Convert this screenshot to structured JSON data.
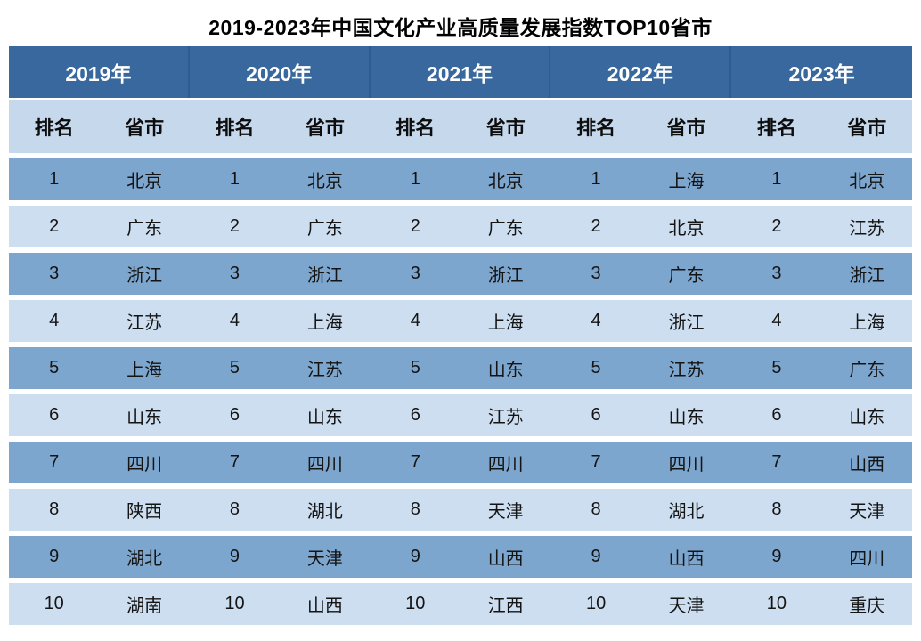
{
  "title": "2019-2023年中国文化产业高质量发展指数TOP10省市",
  "colors": {
    "year_header_bg": "#38689D",
    "year_header_divider": "#2D5C90",
    "year_header_text": "#ffffff",
    "sub_header_bg": "#C6D8EB",
    "row_odd_bg": "#7DA6CE",
    "row_even_bg": "#CDDEF0",
    "data_text": "#141414",
    "page_bg": "#ffffff"
  },
  "table": {
    "year_headers": [
      "2019年",
      "2020年",
      "2021年",
      "2022年",
      "2023年"
    ],
    "sub_headers": [
      "排名",
      "省市",
      "排名",
      "省市",
      "排名",
      "省市",
      "排名",
      "省市",
      "排名",
      "省市"
    ],
    "rows": [
      {
        "rank": "1",
        "provinces": [
          "北京",
          "北京",
          "北京",
          "上海",
          "北京"
        ]
      },
      {
        "rank": "2",
        "provinces": [
          "广东",
          "广东",
          "广东",
          "北京",
          "江苏"
        ]
      },
      {
        "rank": "3",
        "provinces": [
          "浙江",
          "浙江",
          "浙江",
          "广东",
          "浙江"
        ]
      },
      {
        "rank": "4",
        "provinces": [
          "江苏",
          "上海",
          "上海",
          "浙江",
          "上海"
        ]
      },
      {
        "rank": "5",
        "provinces": [
          "上海",
          "江苏",
          "山东",
          "江苏",
          "广东"
        ]
      },
      {
        "rank": "6",
        "provinces": [
          "山东",
          "山东",
          "江苏",
          "山东",
          "山东"
        ]
      },
      {
        "rank": "7",
        "provinces": [
          "四川",
          "四川",
          "四川",
          "四川",
          "山西"
        ]
      },
      {
        "rank": "8",
        "provinces": [
          "陕西",
          "湖北",
          "天津",
          "湖北",
          "天津"
        ]
      },
      {
        "rank": "9",
        "provinces": [
          "湖北",
          "天津",
          "山西",
          "山西",
          "四川"
        ]
      },
      {
        "rank": "10",
        "provinces": [
          "湖南",
          "山西",
          "江西",
          "天津",
          "重庆"
        ]
      }
    ]
  },
  "chart_data": {
    "type": "table",
    "title": "2019-2023年中国文化产业高质量发展指数TOP10省市",
    "columns": [
      "2019年",
      "2020年",
      "2021年",
      "2022年",
      "2023年"
    ],
    "sub_columns": [
      "排名",
      "省市"
    ],
    "ranks": [
      1,
      2,
      3,
      4,
      5,
      6,
      7,
      8,
      9,
      10
    ],
    "series": [
      {
        "name": "2019年",
        "values": [
          "北京",
          "广东",
          "浙江",
          "江苏",
          "上海",
          "山东",
          "四川",
          "陕西",
          "湖北",
          "湖南"
        ]
      },
      {
        "name": "2020年",
        "values": [
          "北京",
          "广东",
          "浙江",
          "上海",
          "江苏",
          "山东",
          "四川",
          "湖北",
          "天津",
          "山西"
        ]
      },
      {
        "name": "2021年",
        "values": [
          "北京",
          "广东",
          "浙江",
          "上海",
          "山东",
          "江苏",
          "四川",
          "天津",
          "山西",
          "江西"
        ]
      },
      {
        "name": "2022年",
        "values": [
          "上海",
          "北京",
          "广东",
          "浙江",
          "江苏",
          "山东",
          "四川",
          "湖北",
          "山西",
          "天津"
        ]
      },
      {
        "name": "2023年",
        "values": [
          "北京",
          "江苏",
          "浙江",
          "上海",
          "广东",
          "山东",
          "山西",
          "天津",
          "四川",
          "重庆"
        ]
      }
    ],
    "layout": {
      "header_rows": 2,
      "row_striping": "odd rows medium blue, even rows light blue, white gaps between rows",
      "legend_position": "none",
      "grid": false
    }
  }
}
